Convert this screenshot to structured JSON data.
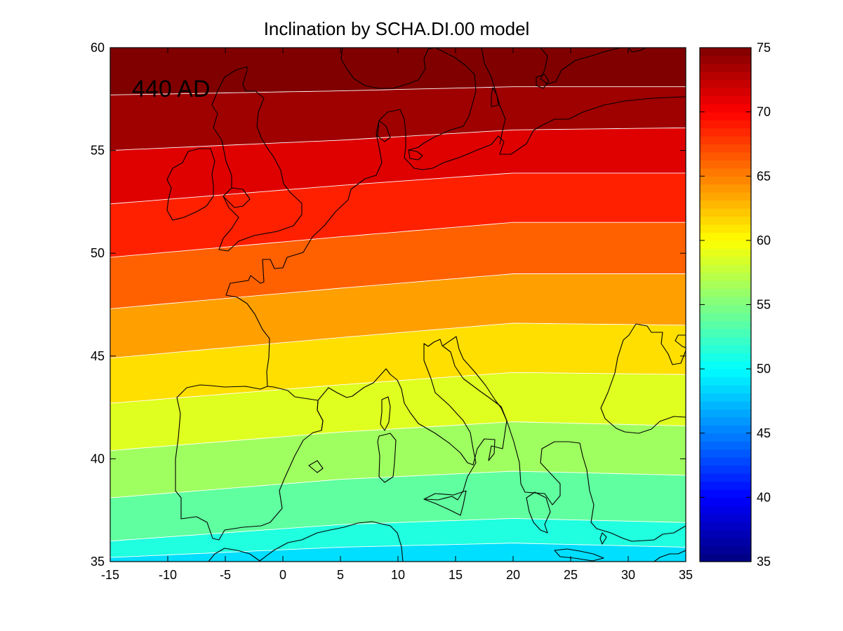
{
  "chart_data": {
    "type": "heatmap",
    "title": "Inclination by SCHA.DI.00 model",
    "annotation": "440 AD",
    "xlabel": "",
    "ylabel": "",
    "xlim": [
      -15,
      35
    ],
    "ylim": [
      35,
      60
    ],
    "x_ticks": [
      "-15",
      "-10",
      "-5",
      "0",
      "5",
      "10",
      "15",
      "20",
      "25",
      "30",
      "35"
    ],
    "y_ticks": [
      "35",
      "40",
      "45",
      "50",
      "55",
      "60"
    ],
    "colorbar": {
      "range": [
        35,
        75
      ],
      "ticks": [
        "35",
        "40",
        "45",
        "50",
        "55",
        "60",
        "65",
        "70",
        "75"
      ],
      "colormap": "jet"
    },
    "contour_interval": 2.5,
    "contour_lines": [
      {
        "value": 50.0,
        "lon": [
          -15,
          5,
          20,
          35
        ],
        "lat": [
          35.2,
          35.7,
          35.9,
          35.7
        ]
      },
      {
        "value": 52.5,
        "lon": [
          -15,
          5,
          20,
          35
        ],
        "lat": [
          36.0,
          36.8,
          37.1,
          36.9
        ]
      },
      {
        "value": 55.0,
        "lon": [
          -15,
          5,
          20,
          35
        ],
        "lat": [
          38.1,
          39.0,
          39.4,
          39.2
        ]
      },
      {
        "value": 57.5,
        "lon": [
          -15,
          5,
          20,
          35
        ],
        "lat": [
          40.4,
          41.3,
          41.8,
          41.6
        ]
      },
      {
        "value": 60.0,
        "lon": [
          -15,
          5,
          20,
          35
        ],
        "lat": [
          42.7,
          43.6,
          44.2,
          44.1
        ]
      },
      {
        "value": 62.5,
        "lon": [
          -15,
          5,
          20,
          35
        ],
        "lat": [
          44.9,
          45.9,
          46.6,
          46.5
        ]
      },
      {
        "value": 65.0,
        "lon": [
          -15,
          5,
          20,
          35
        ],
        "lat": [
          47.3,
          48.3,
          49.0,
          49.0
        ]
      },
      {
        "value": 67.5,
        "lon": [
          -15,
          5,
          20,
          35
        ],
        "lat": [
          49.8,
          50.8,
          51.5,
          51.5
        ]
      },
      {
        "value": 70.0,
        "lon": [
          -15,
          5,
          20,
          35
        ],
        "lat": [
          52.4,
          53.3,
          53.9,
          53.9
        ]
      },
      {
        "value": 72.5,
        "lon": [
          -15,
          5,
          20,
          35
        ],
        "lat": [
          55.0,
          55.5,
          56.0,
          56.1
        ]
      },
      {
        "value": 75.0,
        "lon": [
          -15,
          5,
          20,
          35
        ],
        "lat": [
          57.7,
          57.9,
          58.1,
          58.1
        ]
      }
    ]
  },
  "colors": {
    "frame": "#000000",
    "contour": "#ffffff",
    "coastline": "#000000"
  }
}
